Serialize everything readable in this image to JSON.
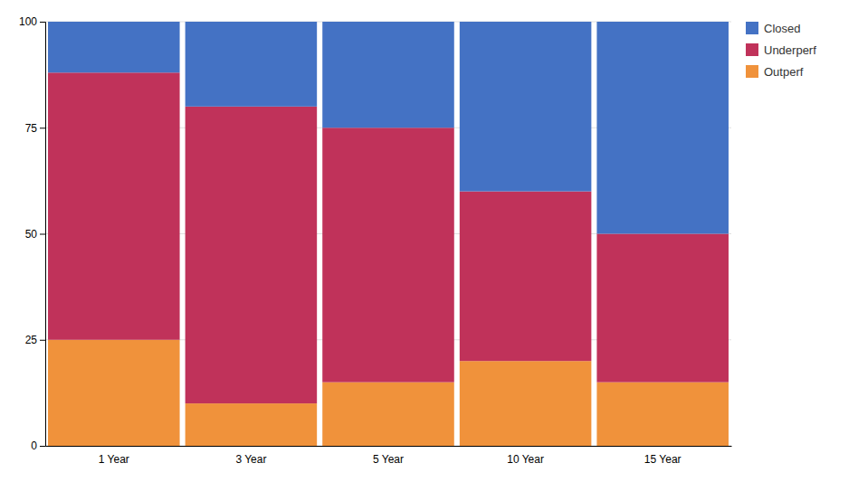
{
  "chart_data": {
    "type": "bar",
    "stacked": true,
    "categories": [
      "1 Year",
      "3 Year",
      "5 Year",
      "10 Year",
      "15 Year"
    ],
    "series": [
      {
        "name": "Outperf",
        "color": "#f0923b",
        "values": [
          25,
          10,
          15,
          20,
          15
        ]
      },
      {
        "name": "Underperf",
        "color": "#c0325a",
        "values": [
          63,
          70,
          60,
          40,
          35
        ]
      },
      {
        "name": "Closed",
        "color": "#4472c4",
        "values": [
          12,
          20,
          25,
          40,
          50
        ]
      }
    ],
    "ylim": [
      0,
      100
    ],
    "yticks": [
      0,
      25,
      50,
      75,
      100
    ],
    "grid": true,
    "legend": "upper right"
  }
}
